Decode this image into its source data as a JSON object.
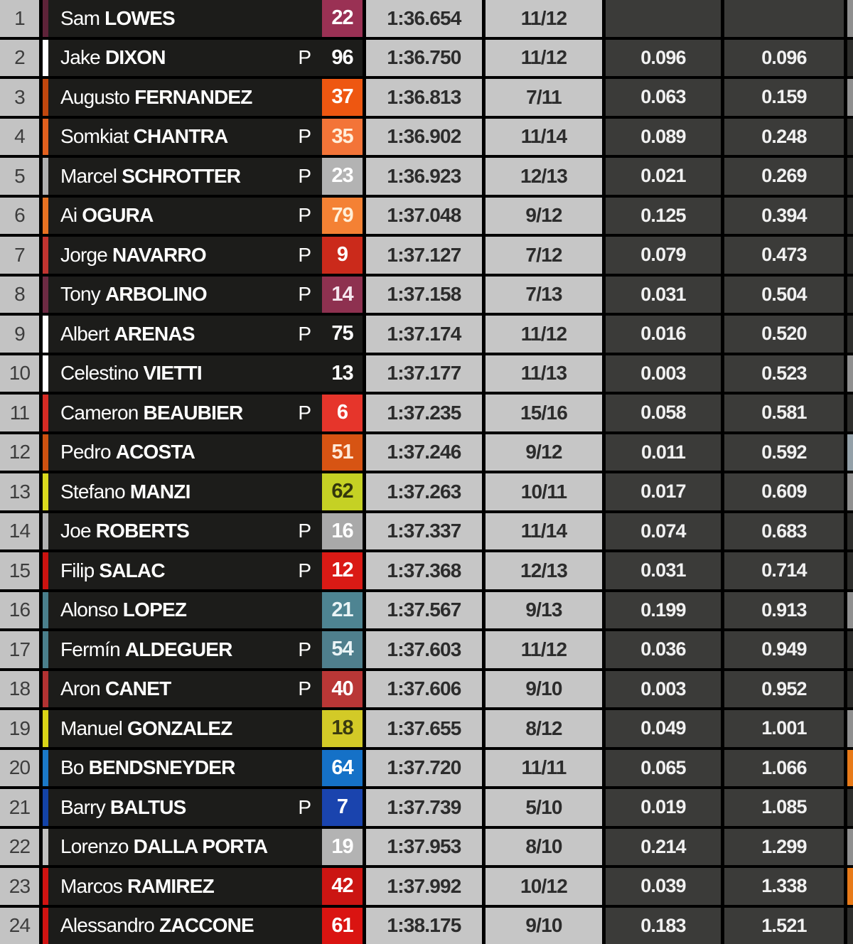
{
  "app": "live-timing-classification",
  "pit_label": "P",
  "theme": {
    "background": "#000000",
    "position_cell_bg": "#c3c3c3",
    "position_text": "#3d3d3d",
    "name_cell_bg": "#1c1c1a",
    "name_text": "#ffffff",
    "time_cell_bg": "#c6c6c6",
    "time_text": "#2c2c2c",
    "gap_cell_bg": "#3b3b39",
    "gap_text": "#f1f1f1",
    "grid_line": "#000000"
  },
  "table": {
    "columns": [
      "position",
      "rider",
      "pit",
      "number",
      "best_lap_time",
      "lap",
      "gap_previous",
      "gap_first"
    ],
    "rows": [
      {
        "pos": "1",
        "first": "Sam",
        "last": "LOWES",
        "pit": false,
        "number": "22",
        "time": "1:36.654",
        "laps": "11/12",
        "gap_prev": "",
        "gap_first": "",
        "box_bg": "#9a3154",
        "box_fg": "#ffffff",
        "strip": "#5e2339",
        "edge": "#8f8f8f"
      },
      {
        "pos": "2",
        "first": "Jake",
        "last": "DIXON",
        "pit": true,
        "number": "96",
        "time": "1:36.750",
        "laps": "11/12",
        "gap_prev": "0.096",
        "gap_first": "0.096",
        "box_bg": "none",
        "box_fg": "#ffffff",
        "strip": "#ffffff",
        "edge": "#2e2e2c"
      },
      {
        "pos": "3",
        "first": "Augusto",
        "last": "FERNANDEZ",
        "pit": false,
        "number": "37",
        "time": "1:36.813",
        "laps": "7/11",
        "gap_prev": "0.063",
        "gap_first": "0.159",
        "box_bg": "#ee5711",
        "box_fg": "#ffffff",
        "strip": "#c0470e",
        "edge": "#8f8f8f"
      },
      {
        "pos": "4",
        "first": "Somkiat",
        "last": "CHANTRA",
        "pit": true,
        "number": "35",
        "time": "1:36.902",
        "laps": "11/14",
        "gap_prev": "0.089",
        "gap_first": "0.248",
        "box_bg": "#f37438",
        "box_fg": "#ffefdc",
        "strip": "#e2601e",
        "edge": "#2e2e2c"
      },
      {
        "pos": "5",
        "first": "Marcel",
        "last": "SCHROTTER",
        "pit": true,
        "number": "23",
        "time": "1:36.923",
        "laps": "12/13",
        "gap_prev": "0.021",
        "gap_first": "0.269",
        "box_bg": "#b3b3b3",
        "box_fg": "#ffffff",
        "strip": "#b0b0b0",
        "edge": "#2e2e2c"
      },
      {
        "pos": "6",
        "first": "Ai",
        "last": "OGURA",
        "pit": true,
        "number": "79",
        "time": "1:37.048",
        "laps": "9/12",
        "gap_prev": "0.125",
        "gap_first": "0.394",
        "box_bg": "#f48134",
        "box_fg": "#ffefd8",
        "strip": "#e87222",
        "edge": "#2e2e2c"
      },
      {
        "pos": "7",
        "first": "Jorge",
        "last": "NAVARRO",
        "pit": true,
        "number": "9",
        "time": "1:37.127",
        "laps": "7/12",
        "gap_prev": "0.079",
        "gap_first": "0.473",
        "box_bg": "#cb2a1b",
        "box_fg": "#ffffff",
        "strip": "#c23430",
        "edge": "#2e2e2c"
      },
      {
        "pos": "8",
        "first": "Tony",
        "last": "ARBOLINO",
        "pit": true,
        "number": "14",
        "time": "1:37.158",
        "laps": "7/13",
        "gap_prev": "0.031",
        "gap_first": "0.504",
        "box_bg": "#8e3150",
        "box_fg": "#f5e6ee",
        "strip": "#6d2a43",
        "edge": "#2e2e2c"
      },
      {
        "pos": "9",
        "first": "Albert",
        "last": "ARENAS",
        "pit": true,
        "number": "75",
        "time": "1:37.174",
        "laps": "11/12",
        "gap_prev": "0.016",
        "gap_first": "0.520",
        "box_bg": "none",
        "box_fg": "#ffffff",
        "strip": "#ffffff",
        "edge": "#2e2e2c"
      },
      {
        "pos": "10",
        "first": "Celestino",
        "last": "VIETTI",
        "pit": false,
        "number": "13",
        "time": "1:37.177",
        "laps": "11/13",
        "gap_prev": "0.003",
        "gap_first": "0.523",
        "box_bg": "none",
        "box_fg": "#ffffff",
        "strip": "#ffffff",
        "edge": "#8f8f8f"
      },
      {
        "pos": "11",
        "first": "Cameron",
        "last": "BEAUBIER",
        "pit": true,
        "number": "6",
        "time": "1:37.235",
        "laps": "15/16",
        "gap_prev": "0.058",
        "gap_first": "0.581",
        "box_bg": "#e6352b",
        "box_fg": "#ffffff",
        "strip": "#d62b24",
        "edge": "#2e2e2c"
      },
      {
        "pos": "12",
        "first": "Pedro",
        "last": "ACOSTA",
        "pit": false,
        "number": "51",
        "time": "1:37.246",
        "laps": "9/12",
        "gap_prev": "0.011",
        "gap_first": "0.592",
        "box_bg": "#d75413",
        "box_fg": "#ffe9d8",
        "strip": "#cd5110",
        "edge": "#93a0a8"
      },
      {
        "pos": "13",
        "first": "Stefano",
        "last": "MANZI",
        "pit": false,
        "number": "62",
        "time": "1:37.263",
        "laps": "10/11",
        "gap_prev": "0.017",
        "gap_first": "0.609",
        "box_bg": "#c5d124",
        "box_fg": "#33370c",
        "strip": "#d9d91e",
        "edge": "#8f8f8f"
      },
      {
        "pos": "14",
        "first": "Joe",
        "last": "ROBERTS",
        "pit": true,
        "number": "16",
        "time": "1:37.337",
        "laps": "11/14",
        "gap_prev": "0.074",
        "gap_first": "0.683",
        "box_bg": "#a9a9a9",
        "box_fg": "#ffffff",
        "strip": "#b2b2b2",
        "edge": "#2e2e2c"
      },
      {
        "pos": "15",
        "first": "Filip",
        "last": "SALAC",
        "pit": true,
        "number": "12",
        "time": "1:37.368",
        "laps": "12/13",
        "gap_prev": "0.031",
        "gap_first": "0.714",
        "box_bg": "#da1a15",
        "box_fg": "#ffffff",
        "strip": "#cc1310",
        "edge": "#2e2e2c"
      },
      {
        "pos": "16",
        "first": "Alonso",
        "last": "LOPEZ",
        "pit": false,
        "number": "21",
        "time": "1:37.567",
        "laps": "9/13",
        "gap_prev": "0.199",
        "gap_first": "0.913",
        "box_bg": "#4e8492",
        "box_fg": "#eaf4f6",
        "strip": "#4a7f8c",
        "edge": "#8f8f8f"
      },
      {
        "pos": "17",
        "first": "Fermín",
        "last": "ALDEGUER",
        "pit": true,
        "number": "54",
        "time": "1:37.603",
        "laps": "11/12",
        "gap_prev": "0.036",
        "gap_first": "0.949",
        "box_bg": "#4f7f8d",
        "box_fg": "#eaf4f6",
        "strip": "#4a7f8c",
        "edge": "#2e2e2c"
      },
      {
        "pos": "18",
        "first": "Aron",
        "last": "CANET",
        "pit": true,
        "number": "40",
        "time": "1:37.606",
        "laps": "9/10",
        "gap_prev": "0.003",
        "gap_first": "0.952",
        "box_bg": "#b93736",
        "box_fg": "#ffffff",
        "strip": "#b23232",
        "edge": "#2e2e2c"
      },
      {
        "pos": "19",
        "first": "Manuel",
        "last": "GONZALEZ",
        "pit": false,
        "number": "18",
        "time": "1:37.655",
        "laps": "8/12",
        "gap_prev": "0.049",
        "gap_first": "1.001",
        "box_bg": "#d3ca27",
        "box_fg": "#3a3a10",
        "strip": "#d9d417",
        "edge": "#8f8f8f"
      },
      {
        "pos": "20",
        "first": "Bo",
        "last": "BENDSNEYDER",
        "pit": false,
        "number": "64",
        "time": "1:37.720",
        "laps": "11/11",
        "gap_prev": "0.065",
        "gap_first": "1.066",
        "box_bg": "#1571c7",
        "box_fg": "#ffffff",
        "strip": "#1b79c7",
        "edge": "#e87a18"
      },
      {
        "pos": "21",
        "first": "Barry",
        "last": "BALTUS",
        "pit": true,
        "number": "7",
        "time": "1:37.739",
        "laps": "5/10",
        "gap_prev": "0.019",
        "gap_first": "1.085",
        "box_bg": "#1a44ae",
        "box_fg": "#ffffff",
        "strip": "#1343a8",
        "edge": "#2e2e2c"
      },
      {
        "pos": "22",
        "first": "Lorenzo",
        "last": "DALLA PORTA",
        "pit": false,
        "number": "19",
        "time": "1:37.953",
        "laps": "8/10",
        "gap_prev": "0.214",
        "gap_first": "1.299",
        "box_bg": "#b3b3b3",
        "box_fg": "#ffffff",
        "strip": "#c0c0c0",
        "edge": "#8f8f8f"
      },
      {
        "pos": "23",
        "first": "Marcos",
        "last": "RAMIREZ",
        "pit": false,
        "number": "42",
        "time": "1:37.992",
        "laps": "10/12",
        "gap_prev": "0.039",
        "gap_first": "1.338",
        "box_bg": "#cb1512",
        "box_fg": "#ffffff",
        "strip": "#d11311",
        "edge": "#e87a18"
      },
      {
        "pos": "24",
        "first": "Alessandro",
        "last": "ZACCONE",
        "pit": false,
        "number": "61",
        "time": "1:38.175",
        "laps": "9/10",
        "gap_prev": "0.183",
        "gap_first": "1.521",
        "box_bg": "#da1411",
        "box_fg": "#ffffff",
        "strip": "#d11311",
        "edge": "#2e2e2c"
      }
    ]
  }
}
